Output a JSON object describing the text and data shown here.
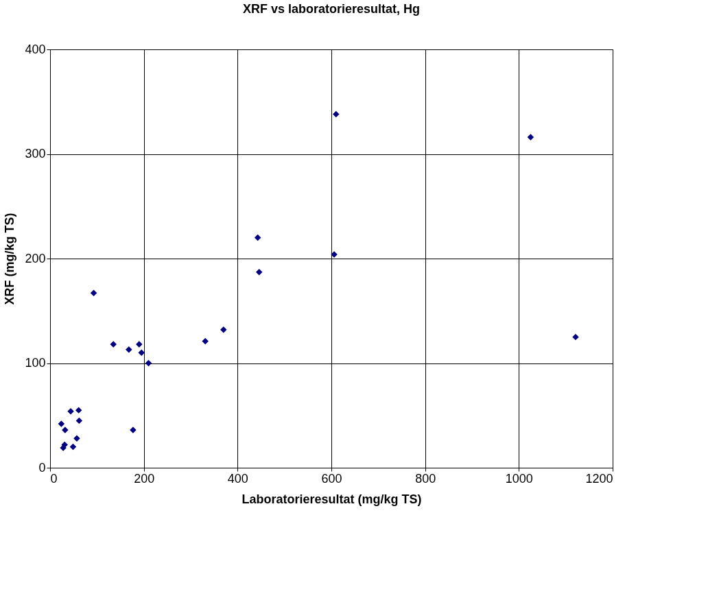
{
  "chart_data": {
    "type": "scatter",
    "title": "XRF vs laboratorieresultat, Hg",
    "xlabel": "Laboratorieresultat (mg/kg TS)",
    "ylabel": "XRF  (mg/kg TS)",
    "x": [
      135,
      168,
      190,
      195,
      210,
      44,
      61,
      62,
      24,
      32,
      57,
      31,
      28,
      49,
      177,
      93,
      331,
      370,
      443,
      446,
      606,
      610,
      1025,
      1121
    ],
    "series": [
      {
        "color": "#000080",
        "values": [
          118,
          113,
          118,
          110,
          100,
          54,
          55,
          45,
          42,
          36,
          28,
          22,
          19,
          20,
          36,
          167,
          121,
          132,
          220,
          187,
          204,
          338,
          316,
          125
        ]
      }
    ],
    "xlim": [
      0,
      1200
    ],
    "xticks": [
      0,
      200,
      400,
      600,
      800,
      1000,
      1200
    ],
    "ylim": [
      0,
      400
    ],
    "yticks": [
      0,
      100,
      200,
      300,
      400
    ],
    "grid": true,
    "marker": "diamond"
  }
}
